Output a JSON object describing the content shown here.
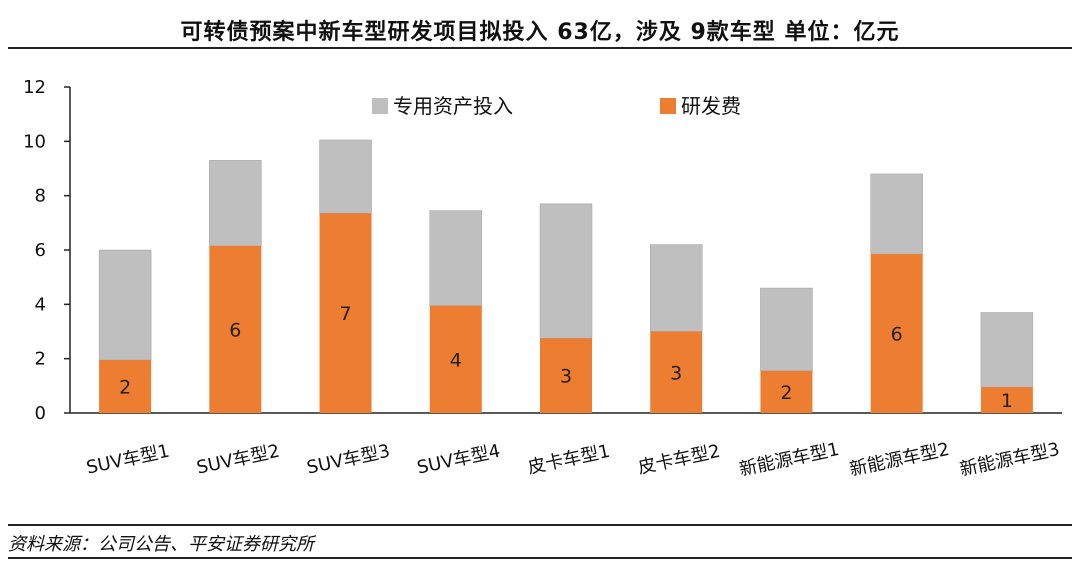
{
  "title": "可转债预案中新车型研发项目拟投入 63亿，涉及 9款车型     单位：亿元",
  "source": "资料来源：公司公告、平安证券研究所",
  "colors": {
    "grey": "#BFBFBF",
    "orange": "#ED7D31",
    "axis": "#222222"
  },
  "chart_data": {
    "type": "bar",
    "stacked": true,
    "categories": [
      "SUV车型1",
      "SUV车型2",
      "SUV车型3",
      "SUV车型4",
      "皮卡车型1",
      "皮卡车型2",
      "新能源车型1",
      "新能源车型2",
      "新能源车型3"
    ],
    "series": [
      {
        "name": "研发费",
        "color": "#ED7D31",
        "values": [
          1.95,
          6.15,
          7.35,
          3.95,
          2.75,
          3.0,
          1.55,
          5.85,
          0.95
        ],
        "labels": [
          "2",
          "6",
          "7",
          "4",
          "3",
          "3",
          "2",
          "6",
          "1"
        ]
      },
      {
        "name": "专用资产投入",
        "color": "#BFBFBF",
        "values": [
          4.05,
          3.15,
          2.7,
          3.5,
          4.95,
          3.2,
          3.05,
          2.95,
          2.75
        ]
      }
    ],
    "ylim": [
      0,
      12
    ],
    "yticks": [
      "0",
      "2",
      "4",
      "6",
      "8",
      "10",
      "12"
    ],
    "legend": "top",
    "grid": false
  }
}
